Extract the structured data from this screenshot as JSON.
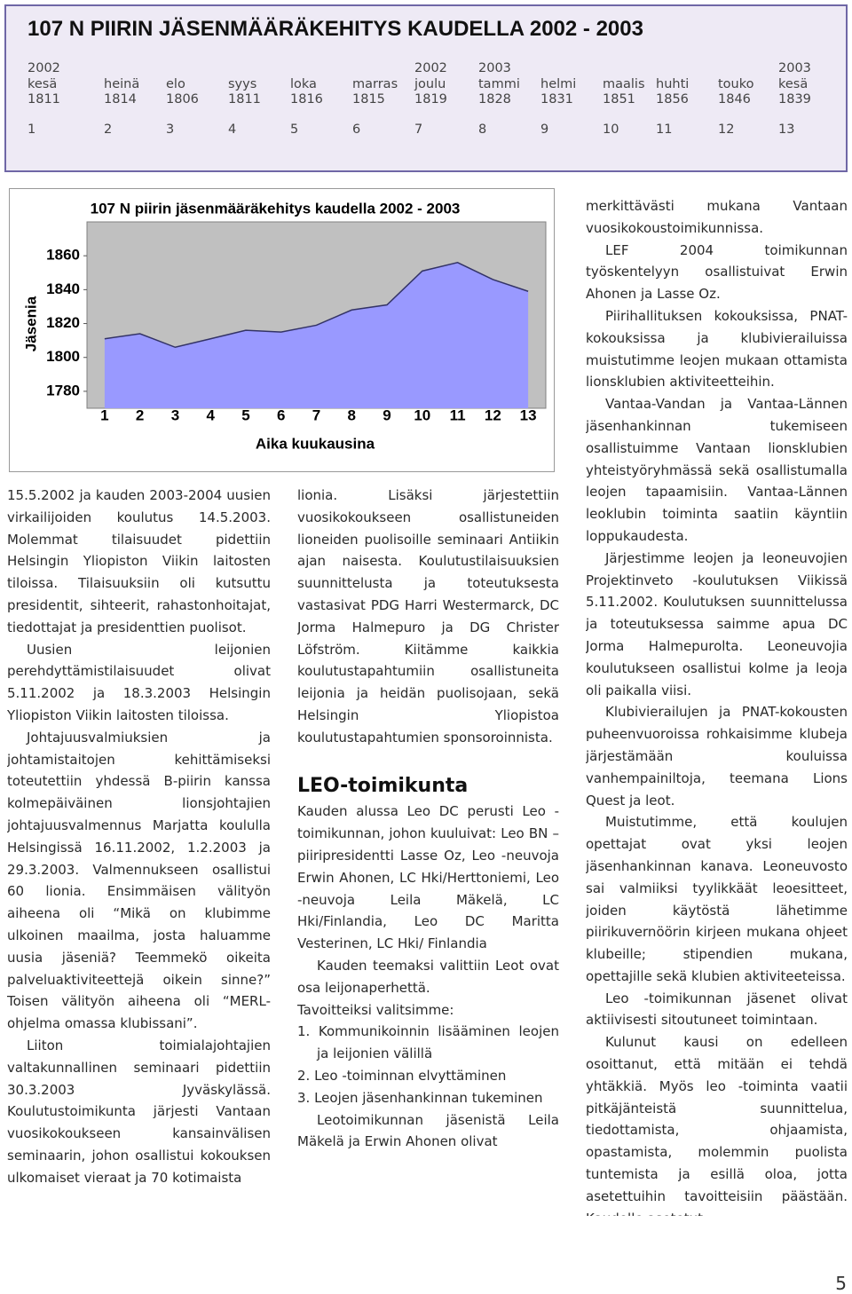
{
  "header": {
    "title": "107 N PIIRIN JÄSENMÄÄRÄKEHITYS KAUDELLA 2002 - 2003",
    "table": {
      "years": [
        "2002",
        null,
        null,
        null,
        null,
        null,
        "2002",
        "2003",
        null,
        null,
        null,
        null,
        "2003"
      ],
      "months": [
        "kesä",
        "heinä",
        "elo",
        "syys",
        "loka",
        "marras",
        "joulu",
        "tammi",
        "helmi",
        "maalis",
        "huhti",
        "touko",
        "kesä"
      ],
      "values": [
        1811,
        1814,
        1806,
        1811,
        1816,
        1815,
        1819,
        1828,
        1831,
        1851,
        1856,
        1846,
        1839
      ],
      "index": [
        1,
        2,
        3,
        4,
        5,
        6,
        7,
        8,
        9,
        10,
        11,
        12,
        13
      ]
    }
  },
  "chart_data": {
    "type": "area",
    "title": "107 N piirin jäsenmääräkehitys kaudella 2002 - 2003",
    "x_label": "Aika kuukausina",
    "y_label": "Jäsenia",
    "categories": [
      "1",
      "2",
      "3",
      "4",
      "5",
      "6",
      "7",
      "8",
      "9",
      "10",
      "11",
      "12",
      "13"
    ],
    "values": [
      1811,
      1814,
      1806,
      1811,
      1816,
      1815,
      1819,
      1828,
      1831,
      1851,
      1856,
      1846,
      1839
    ],
    "color": "#9999ff",
    "ylim": [
      1770,
      1880
    ],
    "yticks": [
      1780,
      1800,
      1820,
      1840,
      1860
    ],
    "grid": false
  },
  "columns": {
    "left": [
      "15.5.2002 ja kauden 2003-2004 uusien virkailijoiden koulutus 14.5.2003. Molemmat tilaisuudet pidettiin Helsingin Yliopiston Viikin laitosten tiloissa. Tilaisuuksiin oli kutsuttu presidentit, sihteerit, rahastonhoitajat, tiedottajat ja presidenttien puolisot.",
      "Uusien leijonien perehdyttämistilaisuudet olivat 5.11.2002 ja 18.3.2003 Helsingin Yliopiston Viikin laitosten tiloissa.",
      "Johtajuusvalmiuksien ja johtamistaitojen kehittämiseksi toteutettiin yhdessä B-piirin kanssa kolmepäiväinen lionsjohtajien johtajuusvalmennus Marjatta koululla Helsingissä 16.11.2002, 1.2.2003 ja 29.3.2003. Valmennukseen osallistui 60 lionia. Ensimmäisen välityön aiheena oli “Mikä on klubimme ulkoinen maailma, josta haluamme uusia jäseniä? Teemmekö oikeita palveluaktiviteettejä oikein sinne?” Toisen välityön aiheena oli “MERL-ohjelma omassa klubissani”.",
      "Liiton toimialajohtajien valtakunnallinen seminaari pidettiin 30.3.2003 Jyväskylässä. Koulutustoimikunta järjesti Vantaan vuosikokoukseen kansainvälisen seminaarin, johon osallistui kokouksen ulkomaiset vieraat ja 70 kotimaista"
    ],
    "middle": {
      "intro": "lionia. Lisäksi järjestettiin vuosikokoukseen osallistuneiden lioneiden puolisoille seminaari Antiikin ajan naisesta. Koulutustilaisuuksien suunnittelusta ja toteutuksesta vastasivat PDG Harri Westermarck, DC Jorma Halmepuro ja DG Christer Löfström. Kiitämme kaikkia koulutustapahtumiin osallistuneita leijonia ja heidän puolisojaan, sekä Helsingin Yliopistoa koulutustapahtumien sponsoroinnista.",
      "heading": "LEO-toimikunta",
      "members": "Kauden alussa Leo DC perusti Leo -toimikunnan, johon kuuluivat: Leo BN –piiripresidentti Lasse Oz, Leo -neuvoja Erwin Ahonen, LC Hki/Herttoniemi, Leo -neuvoja Leila Mäkelä, LC Hki/Finlandia, Leo DC Maritta Vesterinen, LC Hki/ Finlandia",
      "theme": "Kauden teemaksi valittiin Leot ovat osa leijonaperhettä.",
      "goals_intro": "Tavoitteiksi valitsimme:",
      "goals": [
        "1. Kommunikoinnin lisääminen leojen ja leijonien välillä",
        "2. Leo -toiminnan elvyttäminen",
        "3. Leojen jäsenhankinnan tukeminen"
      ],
      "closing": "Leotoimikunnan jäsenistä Leila Mäkelä ja Erwin Ahonen olivat"
    },
    "right": [
      "merkittävästi mukana Vantaan vuosikokoustoimikunnissa.",
      "LEF 2004 toimikunnan työskentelyyn osallistuivat Erwin Ahonen ja Lasse Oz.",
      "Piirihallituksen kokouksissa, PNAT-kokouksissa ja klubivierailuissa muistutimme leojen mukaan ottamista lionsklubien aktiviteetteihin.",
      "Vantaa-Vandan ja Vantaa-Lännen jäsenhankinnan tukemiseen osallistuimme Vantaan lionsklubien yhteistyöryhmässä sekä osallistumalla leojen tapaamisiin. Vantaa-Lännen leoklubin toiminta saatiin käyntiin loppukaudesta.",
      "Järjestimme leojen ja leoneuvojien Projektinveto -koulutuksen Viikissä 5.11.2002. Koulutuksen suunnittelussa ja toteutuksessa saimme apua DC Jorma Halmepurolta. Leoneuvojia koulutukseen osallistui kolme ja leoja oli paikalla viisi.",
      "Klubivierailujen ja PNAT-kokousten puheenvuoroissa rohkaisimme klubeja järjestämään kouluissa vanhempainiltoja, teemana Lions Quest ja leot.",
      "Muistutimme, että koulujen opettajat ovat yksi leojen jäsenhankinnan kanava. Leoneuvosto sai valmiiksi tyylikkäät leoesitteet, joiden käytöstä lähetimme piirikuvernöörin kirjeen mukana ohjeet klubeille; stipendien mukana, opettajille sekä klubien aktiviteeteissa.",
      "Leo -toimikunnan jäsenet olivat aktiivisesti sitoutuneet toimintaan.",
      "Kulunut kausi on edelleen osoittanut, että mitään ei tehdä yhtäkkiä. Myös leo -toiminta vaatii pitkäjänteistä suunnittelua, tiedottamista, ohjaamista, opastamista, molemmin puolista tuntemista ja esillä oloa, jotta asetettuihin tavoitteisiin päästään. Kaudelle asetetut"
    ]
  },
  "page_number": "5"
}
